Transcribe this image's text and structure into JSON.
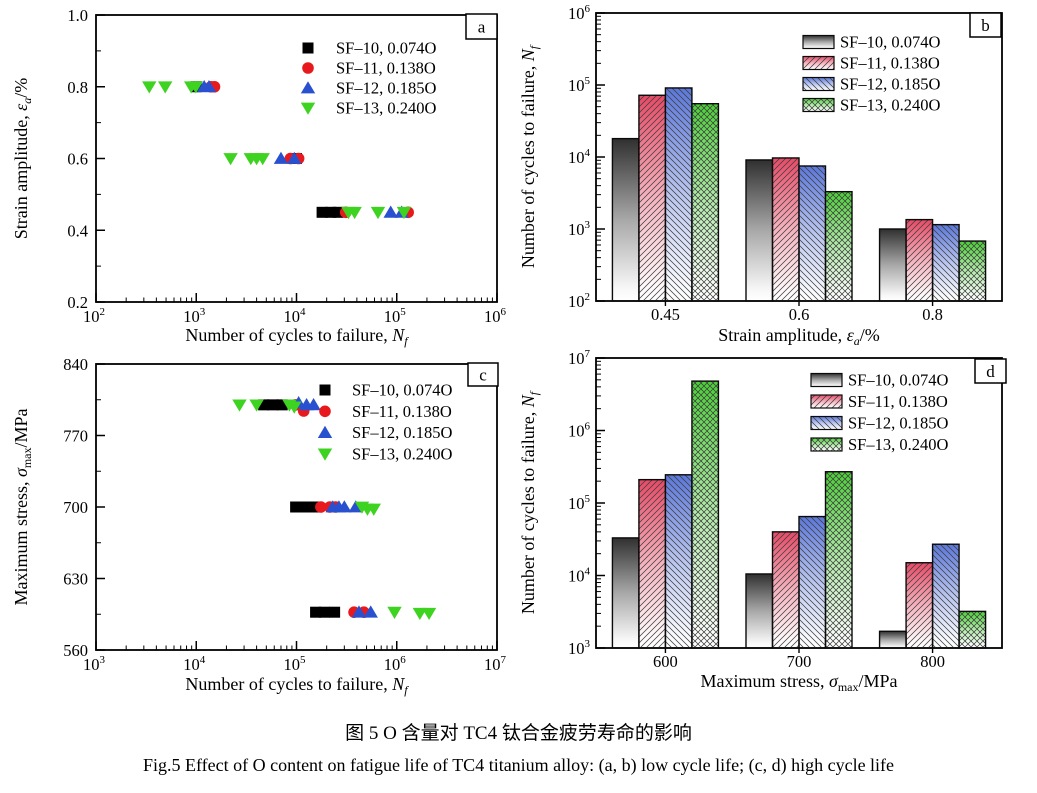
{
  "captions": {
    "zh": "图 5  O 含量对 TC4 钛合金疲劳寿命的影响",
    "en": "Fig.5  Effect of O content on fatigue life of TC4 titanium alloy: (a, b) low cycle life; (c, d) high cycle life"
  },
  "legend_labels": [
    "SF–10, 0.074O",
    "SF–11, 0.138O",
    "SF–12, 0.185O",
    "SF–13, 0.240O"
  ],
  "scatter_colors": [
    "#000000",
    "#e8191c",
    "#2951cf",
    "#3fd321"
  ],
  "scatter_markers": [
    "square",
    "circle",
    "triangle-up",
    "triangle-down"
  ],
  "bar_colors": [
    "#303030",
    "#e64a66",
    "#5b77d9",
    "#4ccf38"
  ],
  "bar_hatches": [
    "none",
    "diag-up",
    "diag-down",
    "cross"
  ],
  "chart_data": [
    {
      "panel": "a",
      "type": "scatter",
      "xscale": "log",
      "xlim": [
        100,
        1000000
      ],
      "ylim": [
        0.2,
        1.0
      ],
      "yticks": [
        "0.2",
        "0.4",
        "0.6",
        "0.8",
        "1.0"
      ],
      "ytick_values": [
        0.2,
        0.4,
        0.6,
        0.8,
        1.0
      ],
      "xlabel": {
        "pre": "Number of cycles to failure, ",
        "sym": "N",
        "sub": "f",
        "post": ""
      },
      "ylabel": {
        "pre": "Strain amplitude, ",
        "sym": "ε",
        "sub": "a",
        "post": "/%"
      },
      "series": [
        {
          "name": "SF–10, 0.074O",
          "points": [
            [
              1000,
              0.8
            ],
            [
              10000,
              0.6
            ],
            [
              18000,
              0.45
            ],
            [
              22000,
              0.45
            ],
            [
              26000,
              0.45
            ]
          ]
        },
        {
          "name": "SF–11, 0.138O",
          "points": [
            [
              1400,
              0.8
            ],
            [
              1520,
              0.8
            ],
            [
              8700,
              0.6
            ],
            [
              10500,
              0.6
            ],
            [
              31000,
              0.45
            ],
            [
              130000,
              0.45
            ]
          ]
        },
        {
          "name": "SF–12, 0.185O",
          "points": [
            [
              1200,
              0.8
            ],
            [
              1340,
              0.8
            ],
            [
              7000,
              0.6
            ],
            [
              9500,
              0.6
            ],
            [
              87000,
              0.45
            ],
            [
              112000,
              0.45
            ]
          ]
        },
        {
          "name": "SF–13, 0.240O",
          "points": [
            [
              340,
              0.8
            ],
            [
              490,
              0.8
            ],
            [
              890,
              0.8
            ],
            [
              990,
              0.8
            ],
            [
              2200,
              0.6
            ],
            [
              3500,
              0.6
            ],
            [
              4000,
              0.6
            ],
            [
              4600,
              0.6
            ],
            [
              33000,
              0.45
            ],
            [
              38000,
              0.45
            ],
            [
              65000,
              0.45
            ],
            [
              118000,
              0.45
            ]
          ]
        }
      ]
    },
    {
      "panel": "b",
      "type": "bar",
      "yscale": "log",
      "ylim": [
        100,
        1000000
      ],
      "categories": [
        "0.45",
        "0.6",
        "0.8"
      ],
      "xlabel": {
        "pre": "Strain amplitude, ",
        "sym": "ε",
        "sub": "a",
        "post": "/%"
      },
      "ylabel": {
        "pre": "Number of cycles to failure, ",
        "sym": "N",
        "sub": "f",
        "post": ""
      },
      "series": [
        {
          "name": "SF–10, 0.074O",
          "values": [
            18000,
            9100,
            1000
          ]
        },
        {
          "name": "SF–11, 0.138O",
          "values": [
            72000,
            9700,
            1350
          ]
        },
        {
          "name": "SF–12, 0.185O",
          "values": [
            91000,
            7500,
            1150
          ]
        },
        {
          "name": "SF–13, 0.240O",
          "values": [
            55000,
            3300,
            680
          ]
        }
      ]
    },
    {
      "panel": "c",
      "type": "scatter",
      "xscale": "log",
      "xlim": [
        1000,
        10000000
      ],
      "ylim": [
        560,
        840
      ],
      "yticks": [
        "560",
        "630",
        "700",
        "770",
        "840"
      ],
      "ytick_values": [
        560,
        630,
        700,
        770,
        840
      ],
      "xlabel": {
        "pre": "Number of cycles to failure, ",
        "sym": "N",
        "sub": "f",
        "post": ""
      },
      "ylabel": {
        "pre": "Maximum stress, ",
        "sym": "σ",
        "sub": "max",
        "post": "/MPa"
      },
      "series": [
        {
          "name": "SF–10, 0.074O",
          "points": [
            [
              47000,
              800
            ],
            [
              58000,
              800
            ],
            [
              72000,
              800
            ],
            [
              98000,
              700
            ],
            [
              120000,
              700
            ],
            [
              150000,
              700
            ],
            [
              155000,
              597
            ],
            [
              190000,
              597
            ],
            [
              240000,
              597
            ]
          ]
        },
        {
          "name": "SF–11, 0.138O",
          "points": [
            [
              98000,
              800
            ],
            [
              118000,
              794
            ],
            [
              175000,
              700
            ],
            [
              215000,
              700
            ],
            [
              245000,
              700
            ],
            [
              375000,
              597
            ],
            [
              470000,
              597
            ]
          ]
        },
        {
          "name": "SF–12, 0.185O",
          "points": [
            [
              105000,
              802
            ],
            [
              126000,
              800
            ],
            [
              148000,
              800
            ],
            [
              230000,
              700
            ],
            [
              265000,
              700
            ],
            [
              300000,
              700
            ],
            [
              390000,
              700
            ],
            [
              420000,
              597
            ],
            [
              550000,
              597
            ]
          ]
        },
        {
          "name": "SF–13, 0.240O",
          "points": [
            [
              27000,
              800
            ],
            [
              40000,
              800
            ],
            [
              85000,
              800
            ],
            [
              95000,
              798
            ],
            [
              450000,
              700
            ],
            [
              510000,
              698
            ],
            [
              590000,
              698
            ],
            [
              950000,
              597
            ],
            [
              1700000,
              596
            ],
            [
              2100000,
              596
            ]
          ]
        }
      ]
    },
    {
      "panel": "d",
      "type": "bar",
      "yscale": "log",
      "ylim": [
        1000,
        10000000
      ],
      "categories": [
        "600",
        "700",
        "800"
      ],
      "xlabel": {
        "pre": "Maximum stress, ",
        "sym": "σ",
        "sub": "max",
        "post": "/MPa"
      },
      "ylabel": {
        "pre": "Number of cycles to failure, ",
        "sym": "N",
        "sub": "f",
        "post": ""
      },
      "series": [
        {
          "name": "SF–10, 0.074O",
          "values": [
            33000,
            10500,
            1700
          ]
        },
        {
          "name": "SF–11, 0.138O",
          "values": [
            210000,
            40000,
            15000
          ]
        },
        {
          "name": "SF–12, 0.185O",
          "values": [
            245000,
            65000,
            27000
          ]
        },
        {
          "name": "SF–13, 0.240O",
          "values": [
            4800000,
            270000,
            3200
          ]
        }
      ]
    }
  ]
}
